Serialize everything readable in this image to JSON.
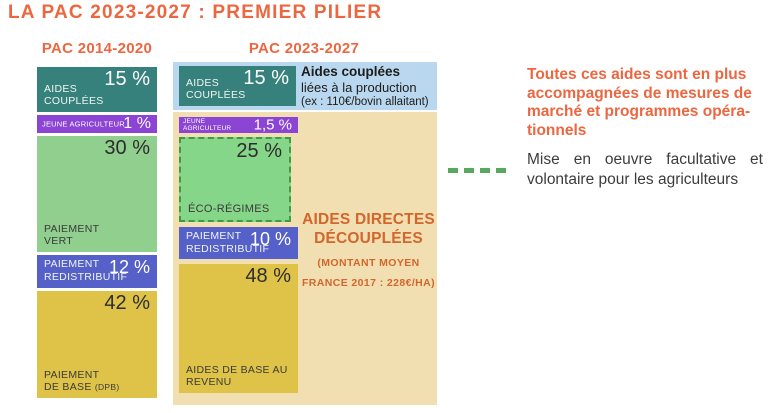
{
  "title": "LA PAC 2023-2027 : PREMIER PILIER",
  "colors": {
    "accent_orange": "#EC6740",
    "teal": "#36817B",
    "purple": "#8B44D4",
    "green_light": "#90CF8E",
    "green_eco": "#85D689",
    "green_eco_border": "#3E9B45",
    "blue": "#5561C8",
    "yellow": "#DFC348",
    "bg_light_blue": "#B9D7EE",
    "bg_tan": "#F1DFB2",
    "dash_green": "#57A95C",
    "annotation_orange": "#D2662C"
  },
  "chart_data": {
    "type": "bar",
    "title": "LA PAC 2023-2027 : PREMIER PILIER",
    "unit": "%",
    "columns": [
      {
        "label": "PAC 2014-2020",
        "segments": [
          {
            "name": "AIDES COUPLÉES",
            "value": "15 %",
            "pct": 15,
            "color": "#36817B"
          },
          {
            "name": "JEUNE AGRICULTEUR",
            "value": "1 %",
            "pct": 1,
            "color": "#8B44D4"
          },
          {
            "name": "PAIEMENT VERT",
            "value": "30 %",
            "pct": 30,
            "color": "#90CF8E"
          },
          {
            "name": "PAIEMENT REDISTRIBUTIF",
            "value": "12 %",
            "pct": 12,
            "color": "#5561C8"
          },
          {
            "name": "PAIEMENT DE BASE (DPB)",
            "value": "42 %",
            "pct": 42,
            "color": "#DFC348",
            "label_lines": [
              "PAIEMENT",
              "DE BASE"
            ],
            "suffix": "(DPB)"
          }
        ]
      },
      {
        "label": "PAC 2023-2027",
        "segments": [
          {
            "name": "AIDES COUPLÉES",
            "value": "15 %",
            "pct": 15,
            "color": "#36817B"
          },
          {
            "name": "JEUNE AGRICULTEUR",
            "value": "1,5 %",
            "pct": 1.5,
            "color": "#8B44D4",
            "label_lines": [
              "JEUNE",
              "AGRICULTEUR"
            ]
          },
          {
            "name": "ÉCO-RÉGIMES",
            "value": "25 %",
            "pct": 25,
            "color": "#85D689",
            "dashed_border": true
          },
          {
            "name": "PAIEMENT REDISTRIBUTIF",
            "value": "10 %",
            "pct": 10,
            "color": "#5561C8"
          },
          {
            "name": "AIDES DE BASE AU REVENU",
            "value": "48 %",
            "pct": 48,
            "color": "#DFC348"
          }
        ]
      }
    ],
    "legend": {
      "dashed_green": "Mise en oeuvre facultative et volontaire pour les agriculteurs"
    }
  },
  "callouts": {
    "coupled_box": {
      "title": "Aides couplées",
      "line2": "liées à la production",
      "line3": "(ex : 110€/bovin allaitant)"
    },
    "decoupled_box": {
      "title": "AIDES DIRECTES DÉCOUPLÉES",
      "subtitle": "(MONTANT MOYEN FRANCE 2017 : 228€/HA)"
    },
    "note_bold_lines": [
      "Toutes ces aides sont en plus",
      "accompagnées de mesures de",
      "marché et programmes opéra-",
      "tionnels"
    ],
    "legend_text": "Mise en oeuvre facultative et volontaire pour les agriculteurs"
  }
}
